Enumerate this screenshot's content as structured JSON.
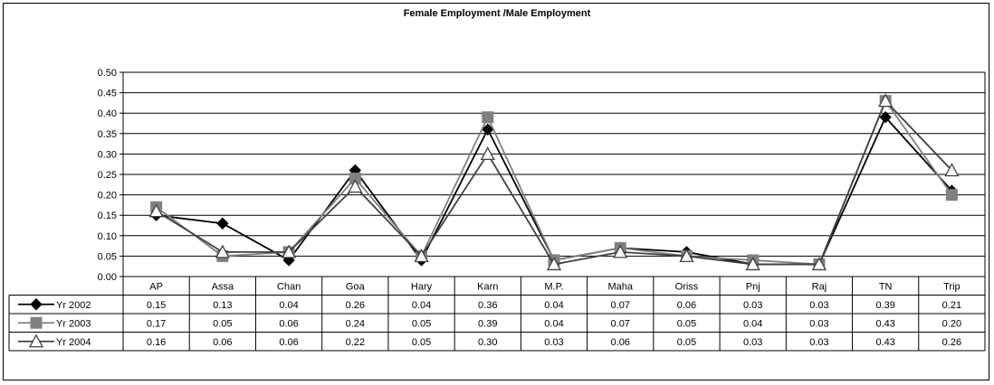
{
  "chart_data": {
    "type": "line",
    "title": "Female Employment /Male Employment",
    "xlabel": "",
    "ylabel": "",
    "categories": [
      "AP",
      "Assa",
      "Chan",
      "Goa",
      "Hary",
      "Karn",
      "M.P.",
      "Maha",
      "Oriss",
      "Pnj",
      "Raj",
      "TN",
      "Trip"
    ],
    "ylim": [
      0,
      0.5
    ],
    "yticks": [
      "0.00",
      "0.05",
      "0.10",
      "0.15",
      "0.20",
      "0.25",
      "0.30",
      "0.35",
      "0.40",
      "0.45",
      "0.50"
    ],
    "grid": true,
    "legend": "data-table",
    "series": [
      {
        "name": "Yr 2002",
        "marker": "diamond",
        "color": "#000000",
        "values": [
          0.15,
          0.13,
          0.04,
          0.26,
          0.04,
          0.36,
          0.04,
          0.07,
          0.06,
          0.03,
          0.03,
          0.39,
          0.21
        ],
        "labels": [
          "0.15",
          "0.13",
          "0.04",
          "0.26",
          "0.04",
          "0.36",
          "0.04",
          "0.07",
          "0.06",
          "0.03",
          "0.03",
          "0.39",
          "0.21"
        ]
      },
      {
        "name": "Yr 2003",
        "marker": "square",
        "color": "#808080",
        "values": [
          0.17,
          0.05,
          0.06,
          0.24,
          0.05,
          0.39,
          0.04,
          0.07,
          0.05,
          0.04,
          0.03,
          0.43,
          0.2
        ],
        "labels": [
          "0.17",
          "0.05",
          "0.06",
          "0.24",
          "0.05",
          "0.39",
          "0.04",
          "0.07",
          "0.05",
          "0.04",
          "0.03",
          "0.43",
          "0.20"
        ]
      },
      {
        "name": "Yr 2004",
        "marker": "triangle-open",
        "color": "#404040",
        "values": [
          0.16,
          0.06,
          0.06,
          0.22,
          0.05,
          0.3,
          0.03,
          0.06,
          0.05,
          0.03,
          0.03,
          0.43,
          0.26
        ],
        "labels": [
          "0.16",
          "0.06",
          "0.06",
          "0.22",
          "0.05",
          "0.30",
          "0.03",
          "0.06",
          "0.05",
          "0.03",
          "0.03",
          "0.43",
          "0.26"
        ]
      }
    ]
  }
}
